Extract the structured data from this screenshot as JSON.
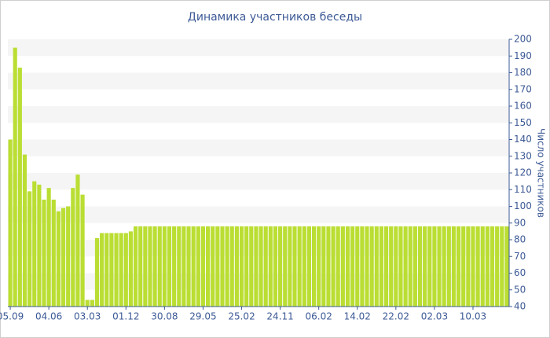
{
  "chart_data": {
    "type": "bar",
    "title": "Динамика участников беседы",
    "y_label": "Число участников",
    "categories": [
      "05.09",
      null,
      null,
      null,
      null,
      null,
      null,
      null,
      "04.06",
      null,
      null,
      null,
      null,
      null,
      null,
      null,
      "03.03",
      null,
      null,
      null,
      null,
      null,
      null,
      null,
      "01.12",
      null,
      null,
      null,
      null,
      null,
      null,
      null,
      "30.08",
      null,
      null,
      null,
      null,
      null,
      null,
      null,
      "29.05",
      null,
      null,
      null,
      null,
      null,
      null,
      null,
      "25.02",
      null,
      null,
      null,
      null,
      null,
      null,
      null,
      "24.11",
      null,
      null,
      null,
      null,
      null,
      null,
      null,
      "06.02",
      null,
      null,
      null,
      null,
      null,
      null,
      null,
      "14.02",
      null,
      null,
      null,
      null,
      null,
      null,
      null,
      "22.02",
      null,
      null,
      null,
      null,
      null,
      null,
      null,
      "02.03",
      null,
      null,
      null,
      null,
      null,
      null,
      null,
      "10.03",
      null,
      null,
      null,
      null,
      null,
      null,
      null
    ],
    "values": [
      140,
      195,
      183,
      131,
      109,
      115,
      113,
      104,
      111,
      104,
      97,
      99,
      100,
      111,
      119,
      107,
      44,
      44,
      81,
      84,
      84,
      84,
      84,
      84,
      84,
      85,
      88,
      88,
      88,
      88,
      88,
      88,
      88,
      88,
      88,
      88,
      88,
      88,
      88,
      88,
      88,
      88,
      88,
      88,
      88,
      88,
      88,
      88,
      88,
      88,
      88,
      88,
      88,
      88,
      88,
      88,
      88,
      88,
      88,
      88,
      88,
      88,
      88,
      88,
      88,
      88,
      88,
      88,
      88,
      88,
      88,
      88,
      88,
      88,
      88,
      88,
      88,
      88,
      88,
      88,
      88,
      88,
      88,
      88,
      88,
      88,
      88,
      88,
      88,
      88,
      88,
      88,
      88,
      88,
      88,
      88,
      88,
      88,
      88,
      88,
      88,
      88,
      88,
      88
    ],
    "color": "#bade33",
    "ylim": [
      40,
      200
    ],
    "yticks": [
      40,
      50,
      60,
      70,
      80,
      90,
      100,
      110,
      120,
      130,
      140,
      150,
      160,
      170,
      180,
      190,
      200
    ],
    "grid": true
  }
}
